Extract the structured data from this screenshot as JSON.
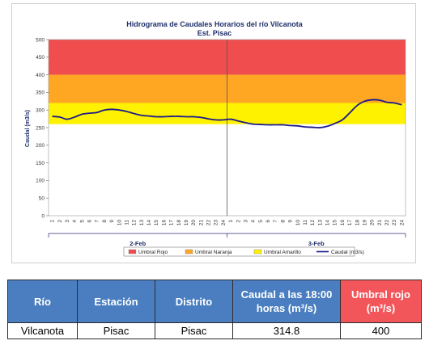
{
  "chart_data": {
    "type": "line",
    "title": "Hidrograma de Caudales Horarios del río Vilcanota",
    "subtitle": "Est. Pisac",
    "ylabel": "Caudal (m3/s)",
    "ylim": [
      0,
      500
    ],
    "yticks": [
      0,
      50,
      100,
      150,
      200,
      250,
      300,
      350,
      400,
      450,
      500
    ],
    "days": [
      "2-Feb",
      "3-Feb"
    ],
    "hour_ticks": [
      "1",
      "2",
      "3",
      "4",
      "5",
      "6",
      "7",
      "8",
      "9",
      "10",
      "11",
      "12",
      "13",
      "14",
      "15",
      "16",
      "17",
      "18",
      "19",
      "20",
      "21",
      "22",
      "23",
      "24"
    ],
    "thresholds": [
      {
        "name": "Umbral Rojo",
        "from": 400,
        "to": 500,
        "color": "#f04e4e"
      },
      {
        "name": "Umbral Naranja",
        "from": 320,
        "to": 400,
        "color": "#ffa722"
      },
      {
        "name": "Umbral Amarillo",
        "from": 260,
        "to": 320,
        "color": "#fff200"
      }
    ],
    "series": [
      {
        "name": "Caudal (m3/s)",
        "color": "#1a1a8c",
        "values": [
          282,
          280,
          274,
          280,
          288,
          291,
          293,
          300,
          302,
          300,
          296,
          290,
          285,
          283,
          281,
          281,
          282,
          282,
          281,
          281,
          279,
          275,
          272,
          272,
          274,
          269,
          264,
          260,
          259,
          258,
          258,
          258,
          256,
          255,
          252,
          251,
          250,
          254,
          262,
          272,
          292,
          313,
          325,
          329,
          328,
          322,
          320,
          315
        ]
      }
    ],
    "legend_position": "bottom"
  },
  "table": {
    "headers": [
      "Río",
      "Estación",
      "Distrito",
      "Caudal a las 18:00 horas (m³/s)",
      "Umbral rojo (m³/s)"
    ],
    "row": [
      "Vilcanota",
      "Pisac",
      "Pisac",
      "314.8",
      "400"
    ]
  }
}
